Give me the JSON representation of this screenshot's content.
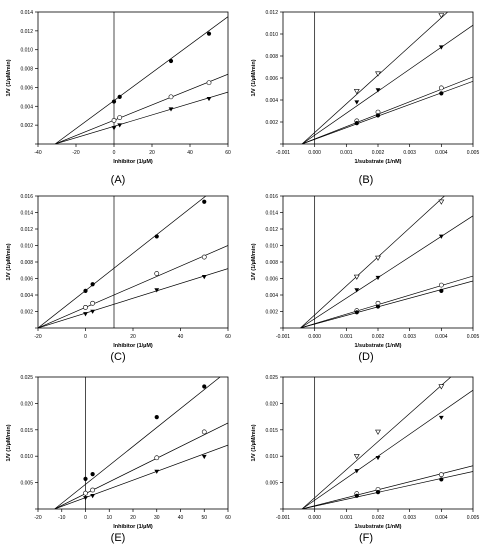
{
  "figure": {
    "panels": [
      "(A)",
      "(B)",
      "(C)",
      "(D)",
      "(E)",
      "(F)"
    ]
  },
  "chart_data": [
    {
      "panel": "(A)",
      "type": "scatter",
      "xlabel": "Inhibitor (1/µM)",
      "ylabel": "1/V (1/µM/min)",
      "xlim": [
        -40,
        60
      ],
      "ylim": [
        0,
        0.014
      ],
      "xticks": [
        -40,
        -20,
        0,
        20,
        40,
        60
      ],
      "yticks": [
        0,
        0.002,
        0.004,
        0.006,
        0.008,
        0.01,
        0.012,
        0.014
      ],
      "ytick_labels": [
        "",
        "0.002",
        "0.004",
        "0.006",
        "0.008",
        "0.010",
        "0.012",
        "0.014"
      ],
      "vline_x": 0,
      "series": [
        {
          "marker": "filled-circle",
          "x": [
            0,
            3,
            30,
            50
          ],
          "y": [
            0.0045,
            0.005,
            0.0088,
            0.0117
          ]
        },
        {
          "marker": "open-circle",
          "x": [
            0,
            3,
            30,
            50
          ],
          "y": [
            0.0025,
            0.0028,
            0.005,
            0.0065
          ]
        },
        {
          "marker": "filled-triangle-down",
          "x": [
            0,
            3,
            30,
            50
          ],
          "y": [
            0.0017,
            0.002,
            0.0037,
            0.0048
          ]
        }
      ],
      "lines": [
        {
          "x1": -31,
          "y1": 0,
          "x2": 60,
          "y2": 0.0135
        },
        {
          "x1": -31,
          "y1": 0,
          "x2": 60,
          "y2": 0.0074
        },
        {
          "x1": -31,
          "y1": 0,
          "x2": 60,
          "y2": 0.0055
        }
      ]
    },
    {
      "panel": "(B)",
      "type": "scatter",
      "xlabel": "1/substrate (1/nM)",
      "ylabel": "1/V (1/µM/min)",
      "xlim": [
        -0.001,
        0.005
      ],
      "ylim": [
        0,
        0.012
      ],
      "xticks": [
        -0.001,
        0.0,
        0.001,
        0.002,
        0.003,
        0.004,
        0.005
      ],
      "xtick_labels": [
        "-0.001",
        "0.000",
        "0.001",
        "0.002",
        "0.003",
        "0.004",
        "0.005"
      ],
      "yticks": [
        0,
        0.002,
        0.004,
        0.006,
        0.008,
        0.01,
        0.012
      ],
      "ytick_labels": [
        "",
        "0.002",
        "0.004",
        "0.006",
        "0.008",
        "0.010",
        "0.012"
      ],
      "vline_x": 0,
      "series": [
        {
          "marker": "open-triangle-down",
          "x": [
            0.00133,
            0.002,
            0.004
          ],
          "y": [
            0.0048,
            0.0064,
            0.0117
          ]
        },
        {
          "marker": "filled-triangle-down",
          "x": [
            0.00133,
            0.002,
            0.004
          ],
          "y": [
            0.0038,
            0.0049,
            0.0088
          ]
        },
        {
          "marker": "open-circle",
          "x": [
            0.00133,
            0.002,
            0.004
          ],
          "y": [
            0.0021,
            0.0029,
            0.0051
          ]
        },
        {
          "marker": "filled-circle",
          "x": [
            0.00133,
            0.002,
            0.004
          ],
          "y": [
            0.0019,
            0.0026,
            0.0046
          ]
        }
      ],
      "lines": [
        {
          "x1": -0.0004,
          "y1": 0,
          "x2": 0.0042,
          "y2": 0.012
        },
        {
          "x1": -0.0004,
          "y1": 0,
          "x2": 0.005,
          "y2": 0.0108
        },
        {
          "x1": -0.0004,
          "y1": 0,
          "x2": 0.005,
          "y2": 0.0061
        },
        {
          "x1": -0.0004,
          "y1": 0,
          "x2": 0.005,
          "y2": 0.0057
        }
      ]
    },
    {
      "panel": "(C)",
      "type": "scatter",
      "xlabel": "Inhibitor (1/µM)",
      "ylabel": "1/V (1/µM/min)",
      "xlim": [
        -20,
        60
      ],
      "ylim": [
        0,
        0.016
      ],
      "xticks": [
        -20,
        0,
        20,
        40,
        60
      ],
      "yticks": [
        0,
        0.002,
        0.004,
        0.006,
        0.008,
        0.01,
        0.012,
        0.014,
        0.016
      ],
      "ytick_labels": [
        "",
        "0.002",
        "0.004",
        "0.006",
        "0.008",
        "0.010",
        "0.012",
        "0.014",
        "0.016"
      ],
      "vline_x": 12,
      "series": [
        {
          "marker": "filled-circle",
          "x": [
            0,
            3,
            30,
            50
          ],
          "y": [
            0.0045,
            0.0053,
            0.0111,
            0.0153
          ]
        },
        {
          "marker": "open-circle",
          "x": [
            0,
            3,
            30,
            50
          ],
          "y": [
            0.0025,
            0.003,
            0.0066,
            0.0086
          ]
        },
        {
          "marker": "filled-triangle-down",
          "x": [
            0,
            3,
            30,
            50
          ],
          "y": [
            0.0017,
            0.002,
            0.0046,
            0.0062
          ]
        }
      ],
      "lines": [
        {
          "x1": -20,
          "y1": 0,
          "x2": 52,
          "y2": 0.0163
        },
        {
          "x1": -20,
          "y1": 0,
          "x2": 60,
          "y2": 0.01
        },
        {
          "x1": -20,
          "y1": 0,
          "x2": 60,
          "y2": 0.0072
        }
      ]
    },
    {
      "panel": "(D)",
      "type": "scatter",
      "xlabel": "1/substrate (1/nM)",
      "ylabel": "1/V (1/µM/min)",
      "xlim": [
        -0.001,
        0.005
      ],
      "ylim": [
        0,
        0.016
      ],
      "xticks": [
        -0.001,
        0.0,
        0.001,
        0.002,
        0.003,
        0.004,
        0.005
      ],
      "xtick_labels": [
        "-0.001",
        "0.000",
        "0.001",
        "0.002",
        "0.003",
        "0.004",
        "0.005"
      ],
      "yticks": [
        0,
        0.002,
        0.004,
        0.006,
        0.008,
        0.01,
        0.012,
        0.014,
        0.016
      ],
      "ytick_labels": [
        "",
        "0.002",
        "0.004",
        "0.006",
        "0.008",
        "0.010",
        "0.012",
        "0.014",
        "0.016"
      ],
      "vline_x": 0,
      "series": [
        {
          "marker": "open-triangle-down",
          "x": [
            0.00133,
            0.002,
            0.004
          ],
          "y": [
            0.0062,
            0.0085,
            0.0153
          ]
        },
        {
          "marker": "filled-triangle-down",
          "x": [
            0.00133,
            0.002,
            0.004
          ],
          "y": [
            0.0046,
            0.0061,
            0.0111
          ]
        },
        {
          "marker": "open-circle",
          "x": [
            0.00133,
            0.002,
            0.004
          ],
          "y": [
            0.0021,
            0.003,
            0.0052
          ]
        },
        {
          "marker": "filled-circle",
          "x": [
            0.00133,
            0.002,
            0.004
          ],
          "y": [
            0.0019,
            0.0026,
            0.0045
          ]
        }
      ],
      "lines": [
        {
          "x1": -0.00045,
          "y1": 0,
          "x2": 0.0041,
          "y2": 0.016
        },
        {
          "x1": -0.00045,
          "y1": 0,
          "x2": 0.005,
          "y2": 0.0136
        },
        {
          "x1": -0.00045,
          "y1": 0,
          "x2": 0.005,
          "y2": 0.0063
        },
        {
          "x1": -0.00045,
          "y1": 0,
          "x2": 0.005,
          "y2": 0.0057
        }
      ]
    },
    {
      "panel": "(E)",
      "type": "scatter",
      "xlabel": "Inhibitor (1/µM)",
      "ylabel": "1/V (1/µM/min)",
      "xlim": [
        -20,
        60
      ],
      "ylim": [
        0,
        0.025
      ],
      "xticks": [
        -20,
        -10,
        0,
        10,
        20,
        30,
        40,
        50,
        60
      ],
      "yticks": [
        0,
        0.005,
        0.01,
        0.015,
        0.02,
        0.025
      ],
      "ytick_labels": [
        "",
        "0.005",
        "0.010",
        "0.015",
        "0.020",
        "0.025"
      ],
      "vline_x": 0,
      "series": [
        {
          "marker": "filled-circle",
          "x": [
            0,
            3,
            30,
            50
          ],
          "y": [
            0.0057,
            0.0066,
            0.0174,
            0.0232
          ]
        },
        {
          "marker": "open-circle",
          "x": [
            0,
            3,
            30,
            50
          ],
          "y": [
            0.003,
            0.0036,
            0.0097,
            0.0146
          ]
        },
        {
          "marker": "filled-triangle-down",
          "x": [
            0,
            3,
            30,
            50
          ],
          "y": [
            0.0021,
            0.0025,
            0.0071,
            0.0099
          ]
        }
      ],
      "lines": [
        {
          "x1": -13,
          "y1": 0,
          "x2": 60,
          "y2": 0.0262
        },
        {
          "x1": -13,
          "y1": 0,
          "x2": 60,
          "y2": 0.0163
        },
        {
          "x1": -13,
          "y1": 0,
          "x2": 60,
          "y2": 0.0121
        }
      ]
    },
    {
      "panel": "(F)",
      "type": "scatter",
      "xlabel": "1/substrate (1/nM)",
      "ylabel": "1/V (1/µM/min)",
      "xlim": [
        -0.001,
        0.005
      ],
      "ylim": [
        0,
        0.025
      ],
      "xticks": [
        -0.001,
        0.0,
        0.001,
        0.002,
        0.003,
        0.004,
        0.005
      ],
      "xtick_labels": [
        "-0.001",
        "0.000",
        "0.001",
        "0.002",
        "0.003",
        "0.004",
        "0.005"
      ],
      "yticks": [
        0,
        0.005,
        0.01,
        0.015,
        0.02,
        0.025
      ],
      "ytick_labels": [
        "",
        "0.005",
        "0.010",
        "0.015",
        "0.020",
        "0.025"
      ],
      "vline_x": 0,
      "series": [
        {
          "marker": "open-triangle-down",
          "x": [
            0.00133,
            0.002,
            0.004
          ],
          "y": [
            0.01,
            0.0146,
            0.0232
          ]
        },
        {
          "marker": "filled-triangle-down",
          "x": [
            0.00133,
            0.002,
            0.004
          ],
          "y": [
            0.0072,
            0.0097,
            0.0173
          ]
        },
        {
          "marker": "open-circle",
          "x": [
            0.00133,
            0.002,
            0.004
          ],
          "y": [
            0.0029,
            0.0037,
            0.0065
          ]
        },
        {
          "marker": "filled-circle",
          "x": [
            0.00133,
            0.002,
            0.004
          ],
          "y": [
            0.0025,
            0.0032,
            0.0056
          ]
        }
      ],
      "lines": [
        {
          "x1": -0.0004,
          "y1": 0,
          "x2": 0.0043,
          "y2": 0.025
        },
        {
          "x1": -0.0004,
          "y1": 0,
          "x2": 0.005,
          "y2": 0.0225
        },
        {
          "x1": -0.0004,
          "y1": 0,
          "x2": 0.005,
          "y2": 0.0082
        },
        {
          "x1": -0.0004,
          "y1": 0,
          "x2": 0.005,
          "y2": 0.0071
        }
      ]
    }
  ]
}
